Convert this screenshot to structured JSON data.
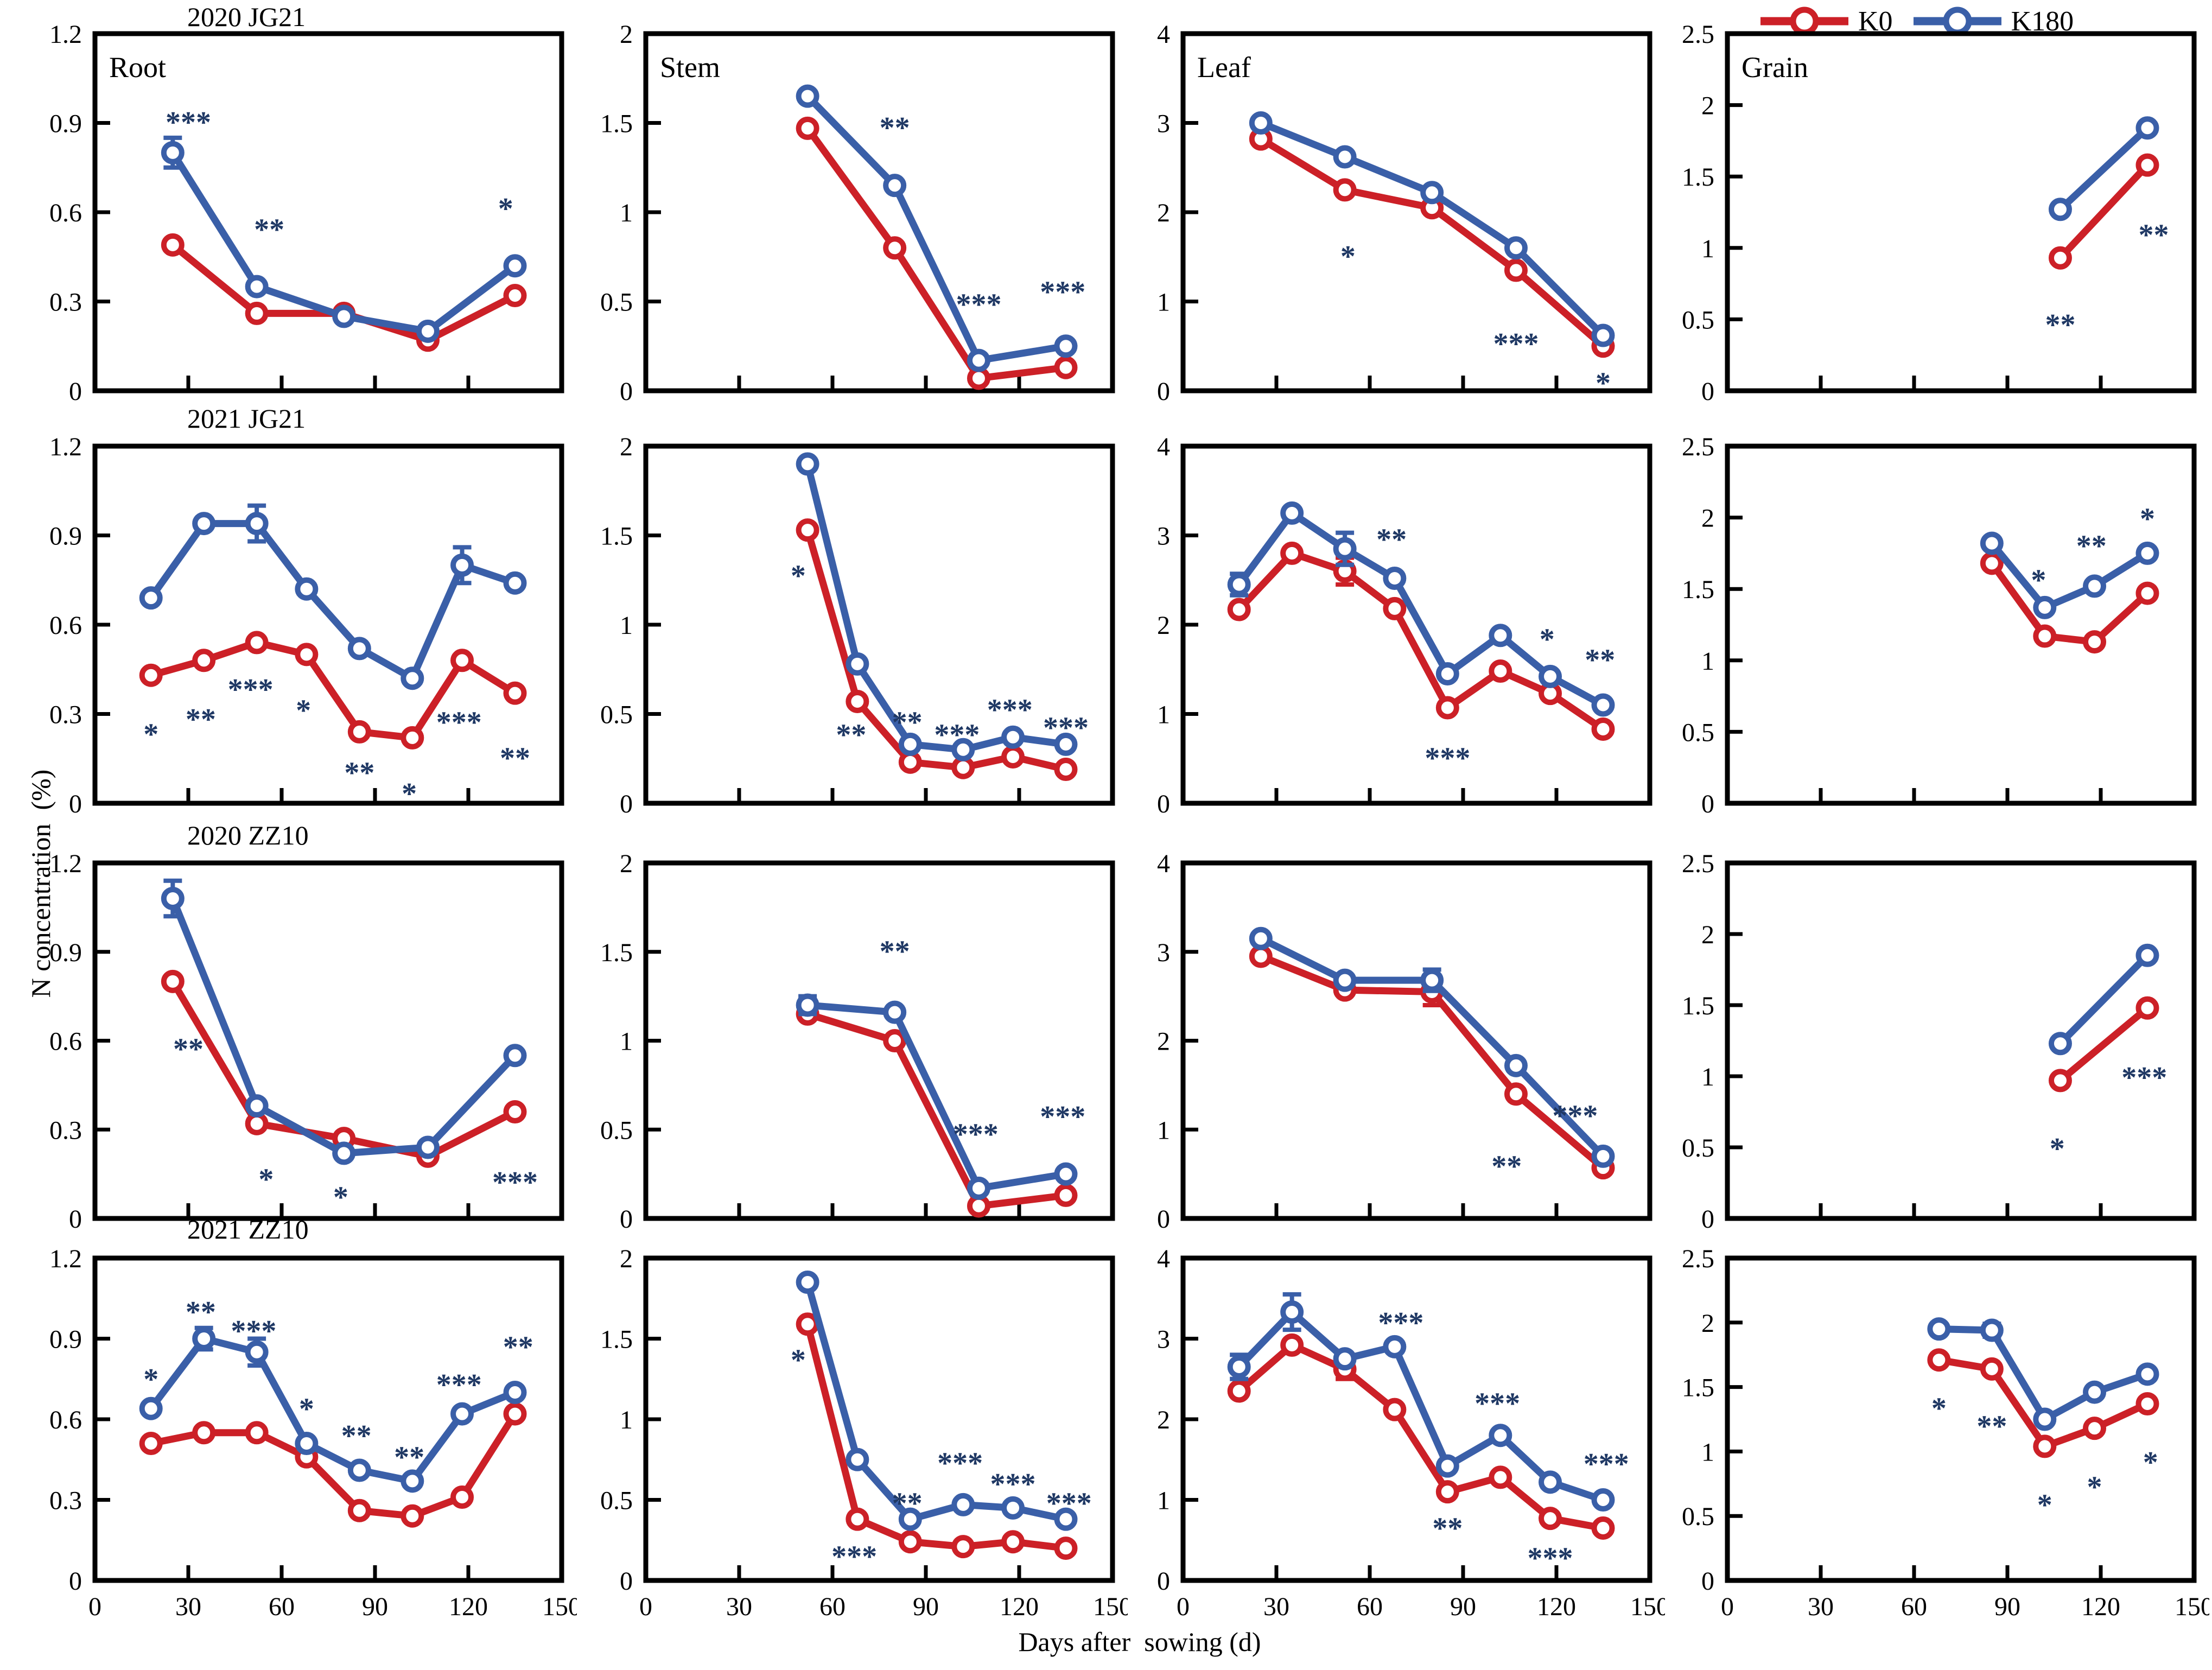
{
  "figure": {
    "row_titles": [
      "2020 JG21",
      "2021 JG21",
      "2020 ZZ10",
      "2021 ZZ10"
    ],
    "y_axis_label": "N concentration  (%)",
    "x_axis_label": "Days after  sowing (d)",
    "legend": [
      {
        "label": "K0",
        "color": "#cc2027"
      },
      {
        "label": "K180",
        "color": "#3a5fa8"
      }
    ],
    "colors": {
      "k0": "#cc2027",
      "k180": "#3a5fa8",
      "significance": "#1f3864",
      "axis": "#000000"
    },
    "xlim": [
      0,
      150
    ],
    "xticks": [
      0,
      30,
      60,
      90,
      120,
      150
    ]
  },
  "chart_data": [
    {
      "type": "line",
      "group": "2020 JG21",
      "organ": "Root",
      "organ_label": "Root",
      "ylim": [
        0,
        1.2
      ],
      "yticks": [
        0,
        0.3,
        0.6,
        0.9,
        1.2
      ],
      "x": [
        25,
        52,
        80,
        107,
        135
      ],
      "series": [
        {
          "name": "K0",
          "values": [
            0.49,
            0.26,
            0.26,
            0.17,
            0.32
          ]
        },
        {
          "name": "K180",
          "values": [
            0.8,
            0.35,
            0.25,
            0.2,
            0.42
          ],
          "error_bars": [
            {
              "i": 0,
              "e": 0.05
            }
          ]
        }
      ],
      "significance": [
        {
          "text": "***",
          "x": 30,
          "y": 0.93
        },
        {
          "text": "**",
          "x": 56,
          "y": 0.57
        },
        {
          "text": "*",
          "x": 132,
          "y": 0.64
        }
      ]
    },
    {
      "type": "line",
      "group": "2020 JG21",
      "organ": "Stem",
      "organ_label": "Stem",
      "ylim": [
        0,
        2
      ],
      "yticks": [
        0,
        0.5,
        1,
        1.5,
        2
      ],
      "x": [
        52,
        80,
        107,
        135
      ],
      "series": [
        {
          "name": "K0",
          "values": [
            1.47,
            0.8,
            0.07,
            0.13
          ]
        },
        {
          "name": "K180",
          "values": [
            1.65,
            1.15,
            0.17,
            0.25
          ]
        }
      ],
      "significance": [
        {
          "text": "**",
          "x": 80,
          "y": 1.52
        },
        {
          "text": "***",
          "x": 107,
          "y": 0.53
        },
        {
          "text": "***",
          "x": 134,
          "y": 0.6
        }
      ]
    },
    {
      "type": "line",
      "group": "2020 JG21",
      "organ": "Leaf",
      "organ_label": "Leaf",
      "ylim": [
        0,
        4
      ],
      "yticks": [
        0,
        1,
        2,
        3,
        4
      ],
      "x": [
        25,
        52,
        80,
        107,
        135
      ],
      "series": [
        {
          "name": "K0",
          "values": [
            2.82,
            2.25,
            2.05,
            1.35,
            0.5
          ]
        },
        {
          "name": "K180",
          "values": [
            3.0,
            2.62,
            2.22,
            1.6,
            0.62
          ]
        }
      ],
      "significance": [
        {
          "text": "*",
          "x": 53,
          "y": 1.6
        },
        {
          "text": "***",
          "x": 107,
          "y": 0.62
        },
        {
          "text": "*",
          "x": 135,
          "y": 0.18
        }
      ]
    },
    {
      "type": "line",
      "group": "2020 JG21",
      "organ": "Grain",
      "organ_label": "Grain",
      "ylim": [
        0,
        2.5
      ],
      "yticks": [
        0,
        0.5,
        1,
        1.5,
        2,
        2.5
      ],
      "x": [
        107,
        135
      ],
      "series": [
        {
          "name": "K0",
          "values": [
            0.93,
            1.58
          ]
        },
        {
          "name": "K180",
          "values": [
            1.27,
            1.84
          ]
        }
      ],
      "significance": [
        {
          "text": "**",
          "x": 107,
          "y": 0.52
        },
        {
          "text": "**",
          "x": 137,
          "y": 1.15
        }
      ]
    },
    {
      "type": "line",
      "group": "2021 JG21",
      "organ": "Root",
      "ylim": [
        0,
        1.2
      ],
      "yticks": [
        0,
        0.3,
        0.6,
        0.9,
        1.2
      ],
      "x": [
        18,
        35,
        52,
        68,
        85,
        102,
        118,
        135
      ],
      "series": [
        {
          "name": "K0",
          "values": [
            0.43,
            0.48,
            0.54,
            0.5,
            0.24,
            0.22,
            0.48,
            0.37
          ]
        },
        {
          "name": "K180",
          "values": [
            0.69,
            0.94,
            0.94,
            0.72,
            0.52,
            0.42,
            0.8,
            0.74
          ],
          "error_bars": [
            {
              "i": 2,
              "e": 0.06
            },
            {
              "i": 6,
              "e": 0.06
            }
          ]
        }
      ],
      "significance": [
        {
          "text": "*",
          "x": 18,
          "y": 0.26
        },
        {
          "text": "**",
          "x": 34,
          "y": 0.31
        },
        {
          "text": "***",
          "x": 50,
          "y": 0.41
        },
        {
          "text": "*",
          "x": 67,
          "y": 0.34
        },
        {
          "text": "**",
          "x": 85,
          "y": 0.13
        },
        {
          "text": "*",
          "x": 101,
          "y": 0.06
        },
        {
          "text": "***",
          "x": 117,
          "y": 0.3
        },
        {
          "text": "**",
          "x": 135,
          "y": 0.18
        }
      ]
    },
    {
      "type": "line",
      "group": "2021 JG21",
      "organ": "Stem",
      "ylim": [
        0,
        2
      ],
      "yticks": [
        0,
        0.5,
        1,
        1.5,
        2
      ],
      "x": [
        52,
        68,
        85,
        102,
        118,
        135
      ],
      "series": [
        {
          "name": "K0",
          "values": [
            1.53,
            0.57,
            0.23,
            0.2,
            0.26,
            0.19
          ]
        },
        {
          "name": "K180",
          "values": [
            1.9,
            0.78,
            0.33,
            0.3,
            0.37,
            0.33
          ]
        }
      ],
      "significance": [
        {
          "text": "*",
          "x": 49,
          "y": 1.32
        },
        {
          "text": "**",
          "x": 66,
          "y": 0.43
        },
        {
          "text": "**",
          "x": 84,
          "y": 0.5
        },
        {
          "text": "***",
          "x": 100,
          "y": 0.43
        },
        {
          "text": "***",
          "x": 117,
          "y": 0.57
        },
        {
          "text": "***",
          "x": 135,
          "y": 0.47
        }
      ]
    },
    {
      "type": "line",
      "group": "2021 JG21",
      "organ": "Leaf",
      "ylim": [
        0,
        4
      ],
      "yticks": [
        0,
        1,
        2,
        3,
        4
      ],
      "x": [
        18,
        35,
        52,
        68,
        85,
        102,
        118,
        135
      ],
      "series": [
        {
          "name": "K0",
          "values": [
            2.17,
            2.8,
            2.6,
            2.18,
            1.07,
            1.48,
            1.23,
            0.83
          ],
          "error_bars": [
            {
              "i": 2,
              "e": 0.15
            }
          ]
        },
        {
          "name": "K180",
          "values": [
            2.45,
            3.25,
            2.85,
            2.52,
            1.45,
            1.88,
            1.42,
            1.1
          ],
          "error_bars": [
            {
              "i": 0,
              "e": 0.12
            },
            {
              "i": 2,
              "e": 0.18
            }
          ]
        }
      ],
      "significance": [
        {
          "text": "**",
          "x": 67,
          "y": 3.05
        },
        {
          "text": "***",
          "x": 85,
          "y": 0.6
        },
        {
          "text": "*",
          "x": 117,
          "y": 1.93
        },
        {
          "text": "**",
          "x": 134,
          "y": 1.7
        }
      ]
    },
    {
      "type": "line",
      "group": "2021 JG21",
      "organ": "Grain",
      "ylim": [
        0,
        2.5
      ],
      "yticks": [
        0,
        0.5,
        1,
        1.5,
        2,
        2.5
      ],
      "x": [
        85,
        102,
        118,
        135
      ],
      "series": [
        {
          "name": "K0",
          "values": [
            1.68,
            1.17,
            1.13,
            1.47
          ]
        },
        {
          "name": "K180",
          "values": [
            1.82,
            1.37,
            1.52,
            1.75
          ]
        }
      ],
      "significance": [
        {
          "text": "*",
          "x": 100,
          "y": 1.62
        },
        {
          "text": "**",
          "x": 117,
          "y": 1.86
        },
        {
          "text": "*",
          "x": 135,
          "y": 2.05
        }
      ]
    },
    {
      "type": "line",
      "group": "2020 ZZ10",
      "organ": "Root",
      "ylim": [
        0,
        1.2
      ],
      "yticks": [
        0,
        0.3,
        0.6,
        0.9,
        1.2
      ],
      "x": [
        25,
        52,
        80,
        107,
        135
      ],
      "series": [
        {
          "name": "K0",
          "values": [
            0.8,
            0.32,
            0.27,
            0.21,
            0.36
          ]
        },
        {
          "name": "K180",
          "values": [
            1.08,
            0.38,
            0.22,
            0.24,
            0.55
          ],
          "error_bars": [
            {
              "i": 0,
              "e": 0.06
            }
          ]
        }
      ],
      "significance": [
        {
          "text": "**",
          "x": 30,
          "y": 0.6
        },
        {
          "text": "*",
          "x": 55,
          "y": 0.16
        },
        {
          "text": "*",
          "x": 79,
          "y": 0.1
        },
        {
          "text": "***",
          "x": 135,
          "y": 0.15
        }
      ]
    },
    {
      "type": "line",
      "group": "2020 ZZ10",
      "organ": "Stem",
      "ylim": [
        0,
        2
      ],
      "yticks": [
        0,
        0.5,
        1,
        1.5,
        2
      ],
      "x": [
        52,
        80,
        107,
        135
      ],
      "series": [
        {
          "name": "K0",
          "values": [
            1.15,
            1.0,
            0.07,
            0.13
          ]
        },
        {
          "name": "K180",
          "values": [
            1.2,
            1.16,
            0.17,
            0.25
          ],
          "error_bars": [
            {
              "i": 0,
              "e": 0.05
            }
          ]
        }
      ],
      "significance": [
        {
          "text": "**",
          "x": 80,
          "y": 1.55
        },
        {
          "text": "***",
          "x": 106,
          "y": 0.52
        },
        {
          "text": "***",
          "x": 134,
          "y": 0.62
        }
      ]
    },
    {
      "type": "line",
      "group": "2020 ZZ10",
      "organ": "Leaf",
      "ylim": [
        0,
        4
      ],
      "yticks": [
        0,
        1,
        2,
        3,
        4
      ],
      "x": [
        25,
        52,
        80,
        107,
        135
      ],
      "series": [
        {
          "name": "K0",
          "values": [
            2.95,
            2.57,
            2.55,
            1.4,
            0.57
          ],
          "error_bars": [
            {
              "i": 2,
              "e": 0.15
            }
          ]
        },
        {
          "name": "K180",
          "values": [
            3.15,
            2.68,
            2.68,
            1.72,
            0.7
          ],
          "error_bars": [
            {
              "i": 2,
              "e": 0.12
            }
          ]
        }
      ],
      "significance": [
        {
          "text": "**",
          "x": 104,
          "y": 0.68
        },
        {
          "text": "***",
          "x": 126,
          "y": 1.25
        }
      ]
    },
    {
      "type": "line",
      "group": "2020 ZZ10",
      "organ": "Grain",
      "ylim": [
        0,
        2.5
      ],
      "yticks": [
        0,
        0.5,
        1,
        1.5,
        2,
        2.5
      ],
      "x": [
        107,
        135
      ],
      "series": [
        {
          "name": "K0",
          "values": [
            0.97,
            1.48
          ]
        },
        {
          "name": "K180",
          "values": [
            1.23,
            1.85
          ]
        }
      ],
      "significance": [
        {
          "text": "*",
          "x": 106,
          "y": 0.55
        },
        {
          "text": "***",
          "x": 134,
          "y": 1.05
        }
      ]
    },
    {
      "type": "line",
      "group": "2021 ZZ10",
      "organ": "Root",
      "ylim": [
        0,
        1.2
      ],
      "yticks": [
        0,
        0.3,
        0.6,
        0.9,
        1.2
      ],
      "x": [
        18,
        35,
        52,
        68,
        85,
        102,
        118,
        135
      ],
      "series": [
        {
          "name": "K0",
          "values": [
            0.51,
            0.55,
            0.55,
            0.46,
            0.26,
            0.24,
            0.31,
            0.62
          ]
        },
        {
          "name": "K180",
          "values": [
            0.64,
            0.9,
            0.85,
            0.51,
            0.41,
            0.37,
            0.62,
            0.7
          ],
          "error_bars": [
            {
              "i": 1,
              "e": 0.04
            },
            {
              "i": 2,
              "e": 0.05
            }
          ]
        }
      ],
      "significance": [
        {
          "text": "*",
          "x": 18,
          "y": 0.78
        },
        {
          "text": "**",
          "x": 34,
          "y": 1.03
        },
        {
          "text": "***",
          "x": 51,
          "y": 0.96
        },
        {
          "text": "*",
          "x": 68,
          "y": 0.67
        },
        {
          "text": "**",
          "x": 84,
          "y": 0.57
        },
        {
          "text": "**",
          "x": 101,
          "y": 0.49
        },
        {
          "text": "***",
          "x": 117,
          "y": 0.76
        },
        {
          "text": "**",
          "x": 136,
          "y": 0.9
        }
      ]
    },
    {
      "type": "line",
      "group": "2021 ZZ10",
      "organ": "Stem",
      "ylim": [
        0,
        2
      ],
      "yticks": [
        0,
        0.5,
        1,
        1.5,
        2
      ],
      "x": [
        52,
        68,
        85,
        102,
        118,
        135
      ],
      "series": [
        {
          "name": "K0",
          "values": [
            1.59,
            0.38,
            0.24,
            0.21,
            0.24,
            0.2
          ]
        },
        {
          "name": "K180",
          "values": [
            1.85,
            0.75,
            0.38,
            0.47,
            0.45,
            0.38
          ]
        }
      ],
      "significance": [
        {
          "text": "*",
          "x": 49,
          "y": 1.42
        },
        {
          "text": "***",
          "x": 67,
          "y": 0.2
        },
        {
          "text": "**",
          "x": 84,
          "y": 0.53
        },
        {
          "text": "***",
          "x": 101,
          "y": 0.78
        },
        {
          "text": "***",
          "x": 118,
          "y": 0.65
        },
        {
          "text": "***",
          "x": 136,
          "y": 0.53
        }
      ]
    },
    {
      "type": "line",
      "group": "2021 ZZ10",
      "organ": "Leaf",
      "ylim": [
        0,
        4
      ],
      "yticks": [
        0,
        1,
        2,
        3,
        4
      ],
      "x": [
        18,
        35,
        52,
        68,
        85,
        102,
        118,
        135
      ],
      "series": [
        {
          "name": "K0",
          "values": [
            2.35,
            2.92,
            2.62,
            2.12,
            1.1,
            1.28,
            0.77,
            0.65
          ],
          "error_bars": [
            {
              "i": 2,
              "e": 0.12
            }
          ]
        },
        {
          "name": "K180",
          "values": [
            2.65,
            3.33,
            2.75,
            2.9,
            1.42,
            1.8,
            1.22,
            1.0
          ],
          "error_bars": [
            {
              "i": 0,
              "e": 0.15
            },
            {
              "i": 1,
              "e": 0.22
            }
          ]
        }
      ],
      "significance": [
        {
          "text": "***",
          "x": 70,
          "y": 3.3
        },
        {
          "text": "**",
          "x": 85,
          "y": 0.75
        },
        {
          "text": "***",
          "x": 101,
          "y": 2.3
        },
        {
          "text": "***",
          "x": 118,
          "y": 0.38
        },
        {
          "text": "***",
          "x": 136,
          "y": 1.55
        }
      ]
    },
    {
      "type": "line",
      "group": "2021 ZZ10",
      "organ": "Grain",
      "ylim": [
        0,
        2.5
      ],
      "yticks": [
        0,
        0.5,
        1,
        1.5,
        2,
        2.5
      ],
      "x": [
        68,
        85,
        102,
        118,
        135
      ],
      "series": [
        {
          "name": "K0",
          "values": [
            1.71,
            1.64,
            1.04,
            1.18,
            1.37
          ]
        },
        {
          "name": "K180",
          "values": [
            1.95,
            1.94,
            1.25,
            1.46,
            1.6
          ],
          "error_bars": [
            {
              "i": 1,
              "e": 0.05
            }
          ]
        }
      ],
      "significance": [
        {
          "text": "*",
          "x": 68,
          "y": 1.4
        },
        {
          "text": "**",
          "x": 85,
          "y": 1.26
        },
        {
          "text": "*",
          "x": 102,
          "y": 0.65
        },
        {
          "text": "*",
          "x": 118,
          "y": 0.79
        },
        {
          "text": "*",
          "x": 136,
          "y": 0.98
        }
      ]
    }
  ]
}
